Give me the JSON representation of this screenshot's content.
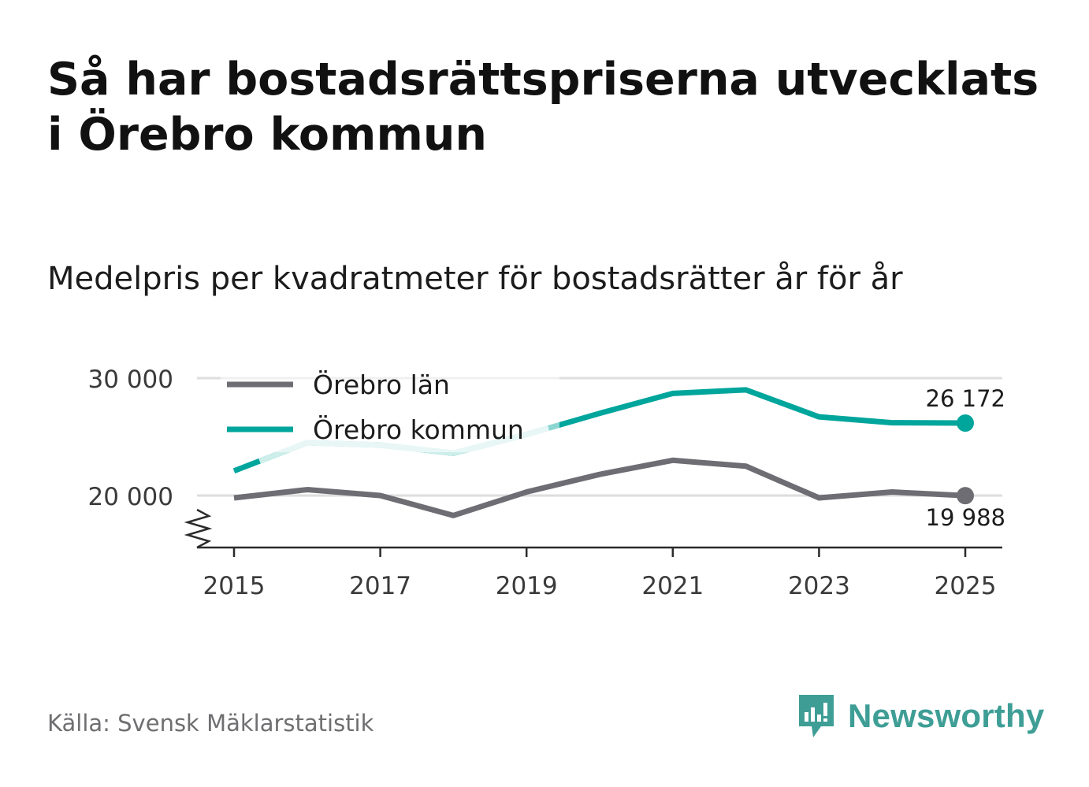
{
  "header": {
    "title": "Så har bostadsrättspriserna utvecklats i Örebro kommun",
    "subtitle": "Medelpris per kvadratmeter för bostadsrätter år för år"
  },
  "footer": {
    "source": "Källa: Svensk Mäklarstatistik",
    "brand": "Newsworthy"
  },
  "colors": {
    "lan": "#6e6d73",
    "kommun": "#00a59c",
    "kommun_faded": "#cdeeea",
    "grid": "#dedede",
    "axis": "#2b2b2b"
  },
  "chart_data": {
    "type": "line",
    "title": "Så har bostadsrättspriserna utvecklats i Örebro kommun",
    "subtitle": "Medelpris per kvadratmeter för bostadsrätter år för år",
    "xlabel": "",
    "ylabel": "",
    "x": [
      2015,
      2016,
      2017,
      2018,
      2019,
      2020,
      2021,
      2022,
      2023,
      2024,
      2025
    ],
    "xticks": [
      "2015",
      "2017",
      "2019",
      "2021",
      "2023",
      "2025"
    ],
    "yticks": [
      "20 000",
      "30 000"
    ],
    "ylim": [
      15500,
      31000
    ],
    "axis_break": true,
    "grid": true,
    "legend": "top-left",
    "series": [
      {
        "name": "Örebro län",
        "color": "#6e6d73",
        "values": [
          19800,
          20500,
          20000,
          18300,
          20300,
          21800,
          23000,
          22500,
          19800,
          20300,
          19988
        ],
        "end_label": "19 988"
      },
      {
        "name": "Örebro kommun",
        "color": "#00a59c",
        "values": [
          22100,
          24500,
          24300,
          23600,
          25200,
          27000,
          28700,
          29000,
          26700,
          26200,
          26172
        ],
        "end_label": "26 172"
      }
    ]
  }
}
